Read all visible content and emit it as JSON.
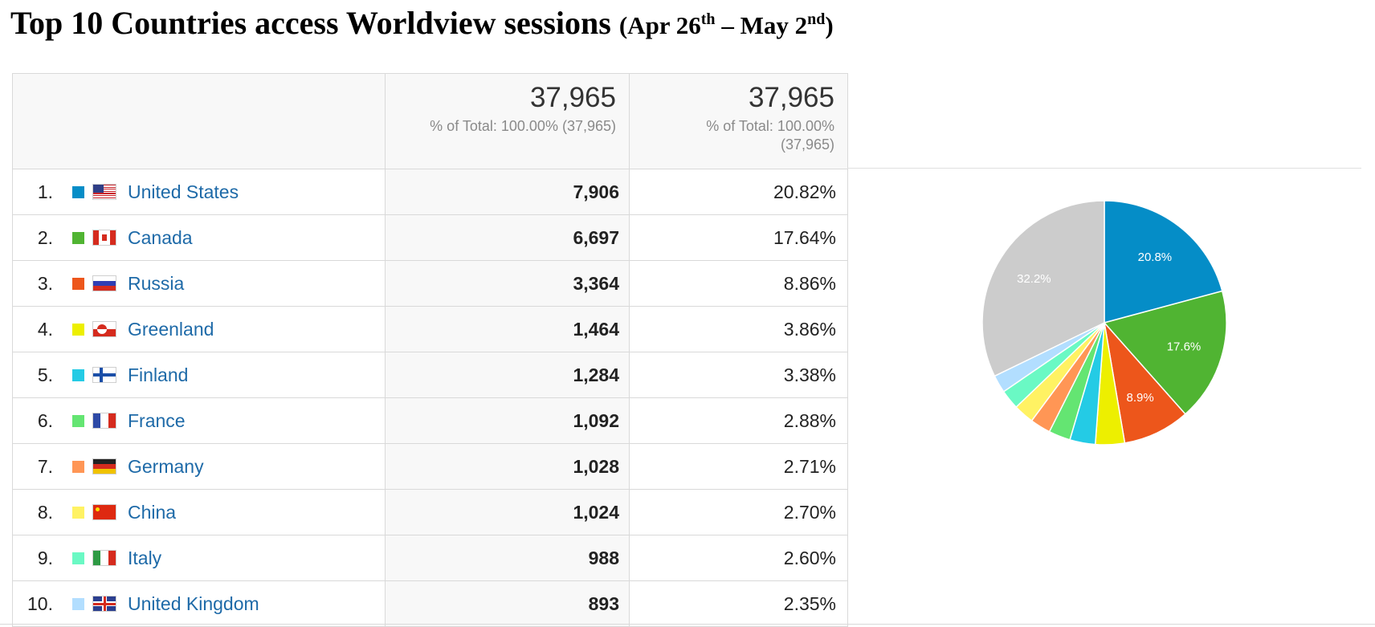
{
  "title": {
    "main": "Top 10 Countries access Worldview sessions",
    "range_open": "(Apr 26",
    "range_sup1": "th",
    "range_mid": " – May 2",
    "range_sup2": "nd",
    "range_close": ")"
  },
  "table": {
    "columns": [
      {
        "total": "37,965",
        "pct": "% of Total: 100.00% (37,965)"
      },
      {
        "total": "37,965",
        "pct": "% of Total: 100.00% (37,965)"
      }
    ],
    "rows": [
      {
        "rank": "1.",
        "country": "United States",
        "sessions": "7,906",
        "percent": "20.82%",
        "color": "#058dc7",
        "flag": "us"
      },
      {
        "rank": "2.",
        "country": "Canada",
        "sessions": "6,697",
        "percent": "17.64%",
        "color": "#50b432",
        "flag": "ca"
      },
      {
        "rank": "3.",
        "country": "Russia",
        "sessions": "3,364",
        "percent": "8.86%",
        "color": "#ed561b",
        "flag": "ru"
      },
      {
        "rank": "4.",
        "country": "Greenland",
        "sessions": "1,464",
        "percent": "3.86%",
        "color": "#edef00",
        "flag": "gl"
      },
      {
        "rank": "5.",
        "country": "Finland",
        "sessions": "1,284",
        "percent": "3.38%",
        "color": "#24cbe5",
        "flag": "fi"
      },
      {
        "rank": "6.",
        "country": "France",
        "sessions": "1,092",
        "percent": "2.88%",
        "color": "#64e572",
        "flag": "fr"
      },
      {
        "rank": "7.",
        "country": "Germany",
        "sessions": "1,028",
        "percent": "2.71%",
        "color": "#ff9655",
        "flag": "de"
      },
      {
        "rank": "8.",
        "country": "China",
        "sessions": "1,024",
        "percent": "2.70%",
        "color": "#fff263",
        "flag": "cn"
      },
      {
        "rank": "9.",
        "country": "Italy",
        "sessions": "988",
        "percent": "2.60%",
        "color": "#6af9c4",
        "flag": "it"
      },
      {
        "rank": "10.",
        "country": "United Kingdom",
        "sessions": "893",
        "percent": "2.35%",
        "color": "#b2deff",
        "flag": "gb"
      }
    ]
  },
  "chart_data": {
    "type": "pie",
    "categories": [
      "United States",
      "Canada",
      "Russia",
      "Greenland",
      "Finland",
      "France",
      "Germany",
      "China",
      "Italy",
      "United Kingdom",
      ""
    ],
    "values": [
      20.82,
      17.64,
      8.86,
      3.86,
      3.38,
      2.88,
      2.71,
      2.7,
      2.6,
      2.35,
      32.2
    ],
    "colors": [
      "#058dc7",
      "#50b432",
      "#ed561b",
      "#edef00",
      "#24cbe5",
      "#64e572",
      "#ff9655",
      "#fff263",
      "#6af9c4",
      "#b2deff",
      "#cccccc"
    ],
    "slice_labels": [
      "20.8%",
      "17.6%",
      "8.9%",
      "",
      "",
      "",
      "",
      "",
      "",
      "",
      "32.2%"
    ],
    "unit": "%"
  }
}
